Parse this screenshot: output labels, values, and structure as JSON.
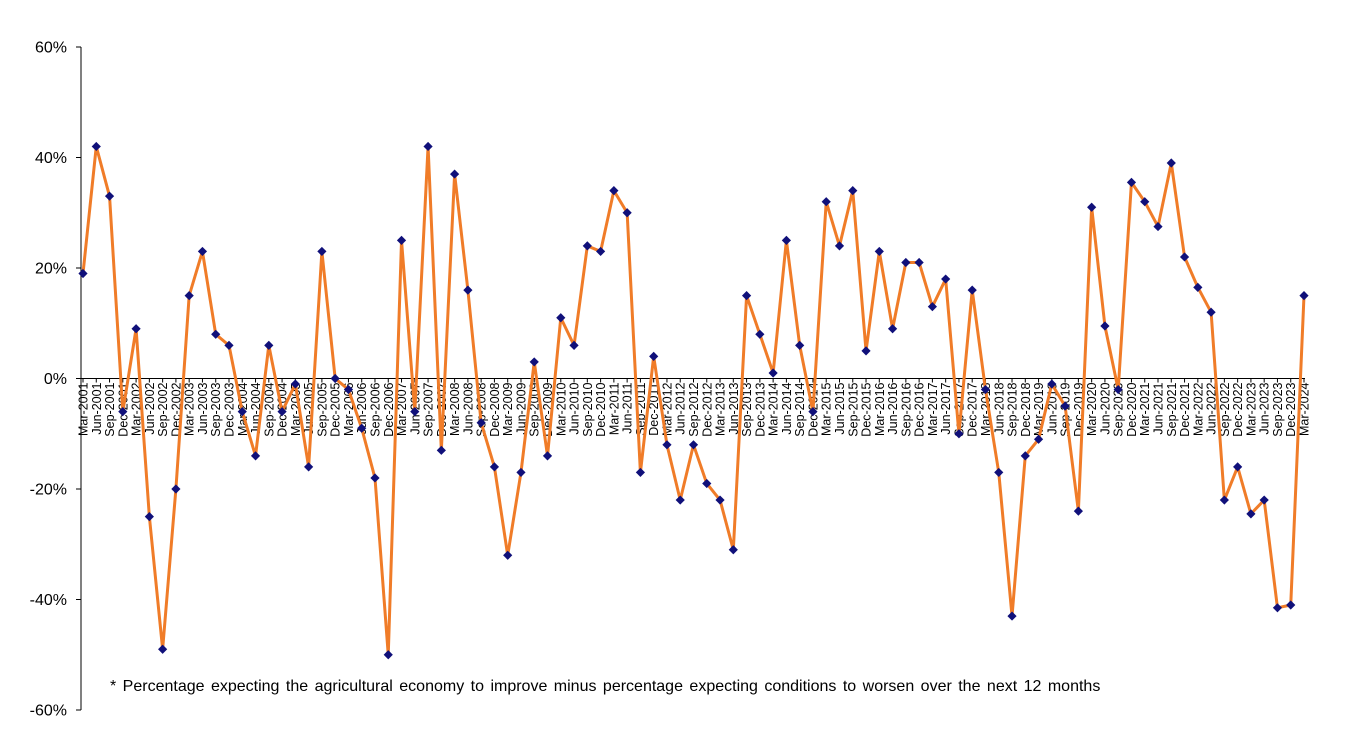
{
  "chart_data": {
    "type": "line",
    "x": [
      "Mar-2001",
      "Jun-2001",
      "Sep-2001",
      "Dec-2001",
      "Mar-2002",
      "Jun-2002",
      "Sep-2002",
      "Dec-2002",
      "Mar-2003",
      "Jun-2003",
      "Sep-2003",
      "Dec-2003",
      "Mar-2004",
      "Jun-2004",
      "Sep-2004",
      "Dec-2004",
      "Mar-2005",
      "Jun-2005",
      "Sep-2005",
      "Dec-2005",
      "Mar-2006",
      "Jun-2006",
      "Sep-2006",
      "Dec-2006",
      "Mar-2007",
      "Jun-2007",
      "Sep-2007",
      "Dec-2007",
      "Mar-2008",
      "Jun-2008",
      "Sep-2008",
      "Dec-2008",
      "Mar-2009",
      "Jun-2009",
      "Sep-2009",
      "Dec-2009",
      "Mar-2010",
      "Jun-2010",
      "Sep-2010",
      "Dec-2010",
      "Mar-2011",
      "Jun-2011",
      "Sep-2011",
      "Dec-2011",
      "Mar-2012",
      "Jun-2012",
      "Sep-2012",
      "Dec-2012",
      "Mar-2013",
      "Jun-2013",
      "Sep-2013",
      "Dec-2013",
      "Mar-2014",
      "Jun-2014",
      "Sep-2014",
      "Dec-2014",
      "Mar-2015",
      "Jun-2015",
      "Sep-2015",
      "Dec-2015",
      "Mar-2016",
      "Jun-2016",
      "Sep-2016",
      "Dec-2016",
      "Mar-2017",
      "Jun-2017",
      "Sep-2017",
      "Dec-2017",
      "Mar-2018",
      "Jun-2018",
      "Sep-2018",
      "Dec-2018",
      "Mar-2019",
      "Jun-2019",
      "Sep-2019",
      "Dec-2019",
      "Mar-2020",
      "Jun-2020",
      "Sep-2020",
      "Dec-2020",
      "Mar-2021",
      "Jun-2021",
      "Sep-2021",
      "Dec-2021",
      "Mar-2022",
      "Jun-2022",
      "Sep-2022",
      "Dec-2022",
      "Mar-2023",
      "Jun-2023",
      "Sep-2023",
      "Dec-2023",
      "Mar-2024"
    ],
    "x_tick_labels": [
      "Mar-2001",
      "Jun-2001",
      "Sep-2001",
      "Dec-2001",
      "Mar-2002",
      "Jun-2002",
      "Sep-2002",
      "Dec-2002",
      "Mar-2003",
      "Jun-2003",
      "Sep-2003",
      "Dec-2003",
      "Mar-2004",
      "Jun-2004",
      "Sep-2004",
      "Dec-2004",
      "Mar-2005",
      "Jun-2005",
      "Sep-2005",
      "Dec-2005",
      "Mar-2006",
      "Jun-2006",
      "Sep-2006",
      "Dec-2006",
      "Mar-2007",
      "Jun-2007",
      "Sep-2007",
      "Dec-2007",
      "Mar-2008",
      "Jun-2008",
      "Sep-2008",
      "Dec-2008",
      "Mar-2009",
      "Jun-2009",
      "Sep-2009",
      "Dec-2009",
      "Mar-2010",
      "Jun-2010",
      "Sep-2010",
      "Dec-2010",
      "Mar-2011",
      "Jun-2011",
      "Sep-2011",
      "Dec-2011",
      "Mar-2012",
      "Jun-2012",
      "Sep-2012",
      "Dec-2012",
      "Mar-2013",
      "Jun-2013",
      "Sep-2013",
      "Dec-2013",
      "Mar-2014",
      "Jun-2014",
      "Sep-2014",
      "Dec-2014",
      "Mar-2015",
      "Jun-2015",
      "Sep-2015",
      "Dec-2015",
      "Mar-2016",
      "Jun-2016",
      "Sep-2016",
      "Dec-2016",
      "Mar-2017",
      "Jun-2017",
      "Sep-2017",
      "Dec-2017",
      "Mar-2018",
      "Jun-2018",
      "Sep-2018",
      "Dec-2018",
      "Mar-2019",
      "Jun-2019",
      "Sep-2019",
      "Dec-2019",
      "Mar-2020",
      "Jun-2020",
      "Sep-2020",
      "Dec-2020",
      "Mar-2021",
      "Jun-2021",
      "Sep-2021",
      "Dec-2021",
      "Mar-2022",
      "Jun-2022",
      "Sep-2022",
      "Dec-2022",
      "Mar-2023",
      "Jun-2023",
      "Sep-2023",
      "Dec-2023",
      "Mar-2024"
    ],
    "series": [
      {
        "values": [
          19,
          42,
          33,
          -6,
          9,
          -25,
          -49,
          -20,
          15,
          23,
          8,
          6,
          -6,
          -14,
          6,
          -6,
          -1,
          -16,
          23,
          0,
          -2,
          -9,
          -18,
          -50,
          25,
          -6,
          42,
          -13,
          37,
          16,
          -8,
          -16,
          -32,
          -17,
          3,
          -14,
          11,
          6,
          24,
          23,
          34,
          30,
          -17,
          4,
          -12,
          -22,
          -12,
          -19,
          -22,
          -31,
          15,
          8,
          1,
          25,
          6,
          -6,
          32,
          24,
          34,
          5,
          23,
          9,
          21,
          21,
          13,
          18,
          -10,
          16,
          -2,
          -17,
          -43,
          -14,
          -11,
          -1,
          -5,
          -24,
          31,
          9.5,
          -2,
          35.5,
          32,
          27.5,
          39,
          22,
          16.5,
          12,
          -22,
          -16,
          -24.5,
          -22,
          -41.5,
          -41,
          15
        ]
      }
    ],
    "y_ticks": [
      -60,
      -40,
      -20,
      0,
      20,
      40,
      60
    ],
    "y_tick_labels": [
      "-60%",
      "-40%",
      "-20%",
      "0%",
      "20%",
      "40%",
      "60%"
    ],
    "ylim": [
      -60,
      60
    ],
    "grid": false,
    "legend": "none",
    "title": "",
    "xlabel": "",
    "ylabel": "",
    "footnote": "* Percentage expecting the agricultural economy to improve minus percentage expecting conditions to worsen over the next 12 months",
    "colors": {
      "line": "#f07c28",
      "marker": "#10107a",
      "axis": "#000000"
    }
  }
}
